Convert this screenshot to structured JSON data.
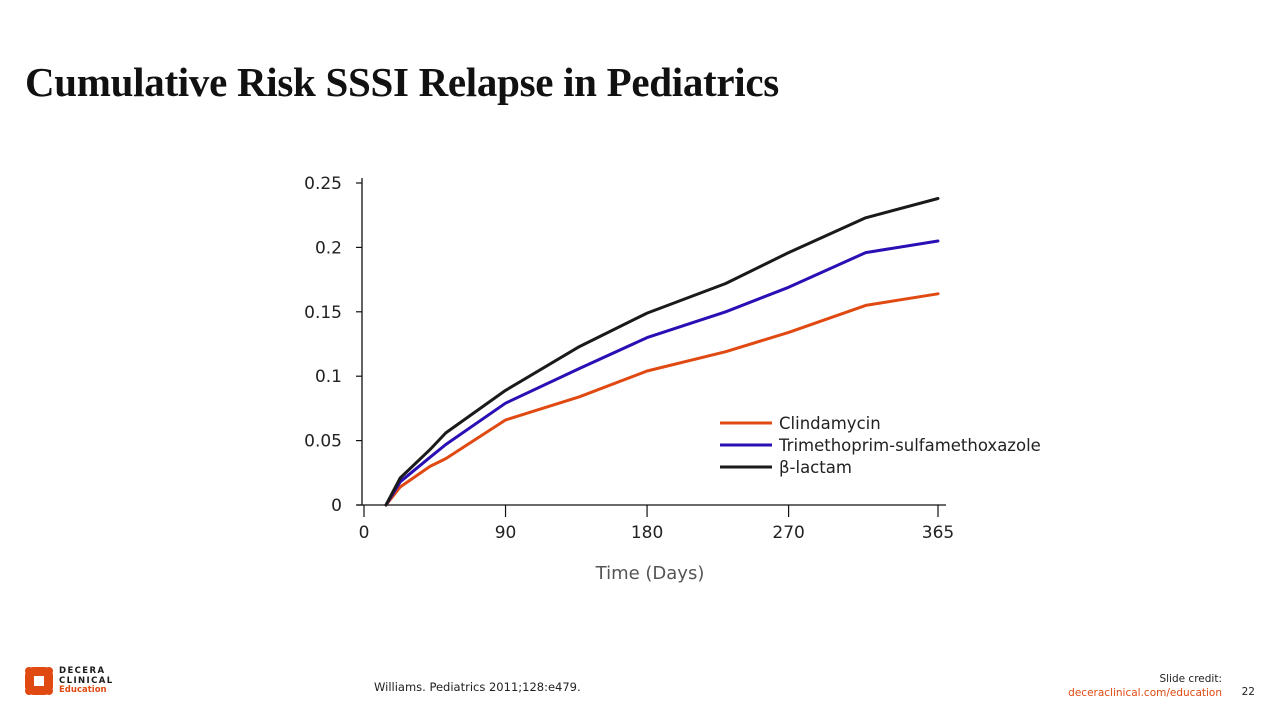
{
  "slide": {
    "title": "Cumulative Risk SSSI Relapse in Pediatrics",
    "citation": "Williams. Pediatrics 2011;128:e479.",
    "credit_label": "Slide credit:",
    "credit_link": "deceraclinical.com/education",
    "page_number": "22",
    "logo": {
      "icon": "decera-logo-icon",
      "line1": "DECERA",
      "line2": "CLINICAL",
      "line3": "Education",
      "color": "#E04A12"
    }
  },
  "chart_data": {
    "type": "line",
    "title": "",
    "xlabel": "Time (Days)",
    "ylabel": "",
    "xlim": [
      0,
      365
    ],
    "ylim": [
      0,
      0.25
    ],
    "x_ticks": [
      0,
      90,
      180,
      270,
      365
    ],
    "x_tick_labels": [
      "0",
      "90",
      "180",
      "270",
      "365"
    ],
    "y_ticks": [
      0,
      0.05,
      0.1,
      0.15,
      0.2,
      0.25
    ],
    "y_tick_labels": [
      "0",
      "0.05",
      "0.1",
      "0.15",
      "0.2",
      "0.25"
    ],
    "grid": false,
    "legend_position": "lower-right",
    "x": [
      14,
      23,
      42,
      52,
      90,
      137,
      180,
      230,
      270,
      319,
      365
    ],
    "series": [
      {
        "name": "Clindamycin",
        "color": "#E04A12",
        "values": [
          0,
          0.014,
          0.03,
          0.036,
          0.066,
          0.084,
          0.104,
          0.119,
          0.134,
          0.155,
          0.164
        ]
      },
      {
        "name": "Trimethoprim-sulfamethoxazole",
        "color": "#2A0FB4",
        "values": [
          0,
          0.018,
          0.037,
          0.047,
          0.079,
          0.106,
          0.13,
          0.15,
          0.169,
          0.196,
          0.205
        ]
      },
      {
        "name": "β-lactam",
        "color": "#1a1a1a",
        "values": [
          0,
          0.021,
          0.043,
          0.056,
          0.089,
          0.123,
          0.149,
          0.172,
          0.196,
          0.223,
          0.238
        ]
      }
    ]
  }
}
